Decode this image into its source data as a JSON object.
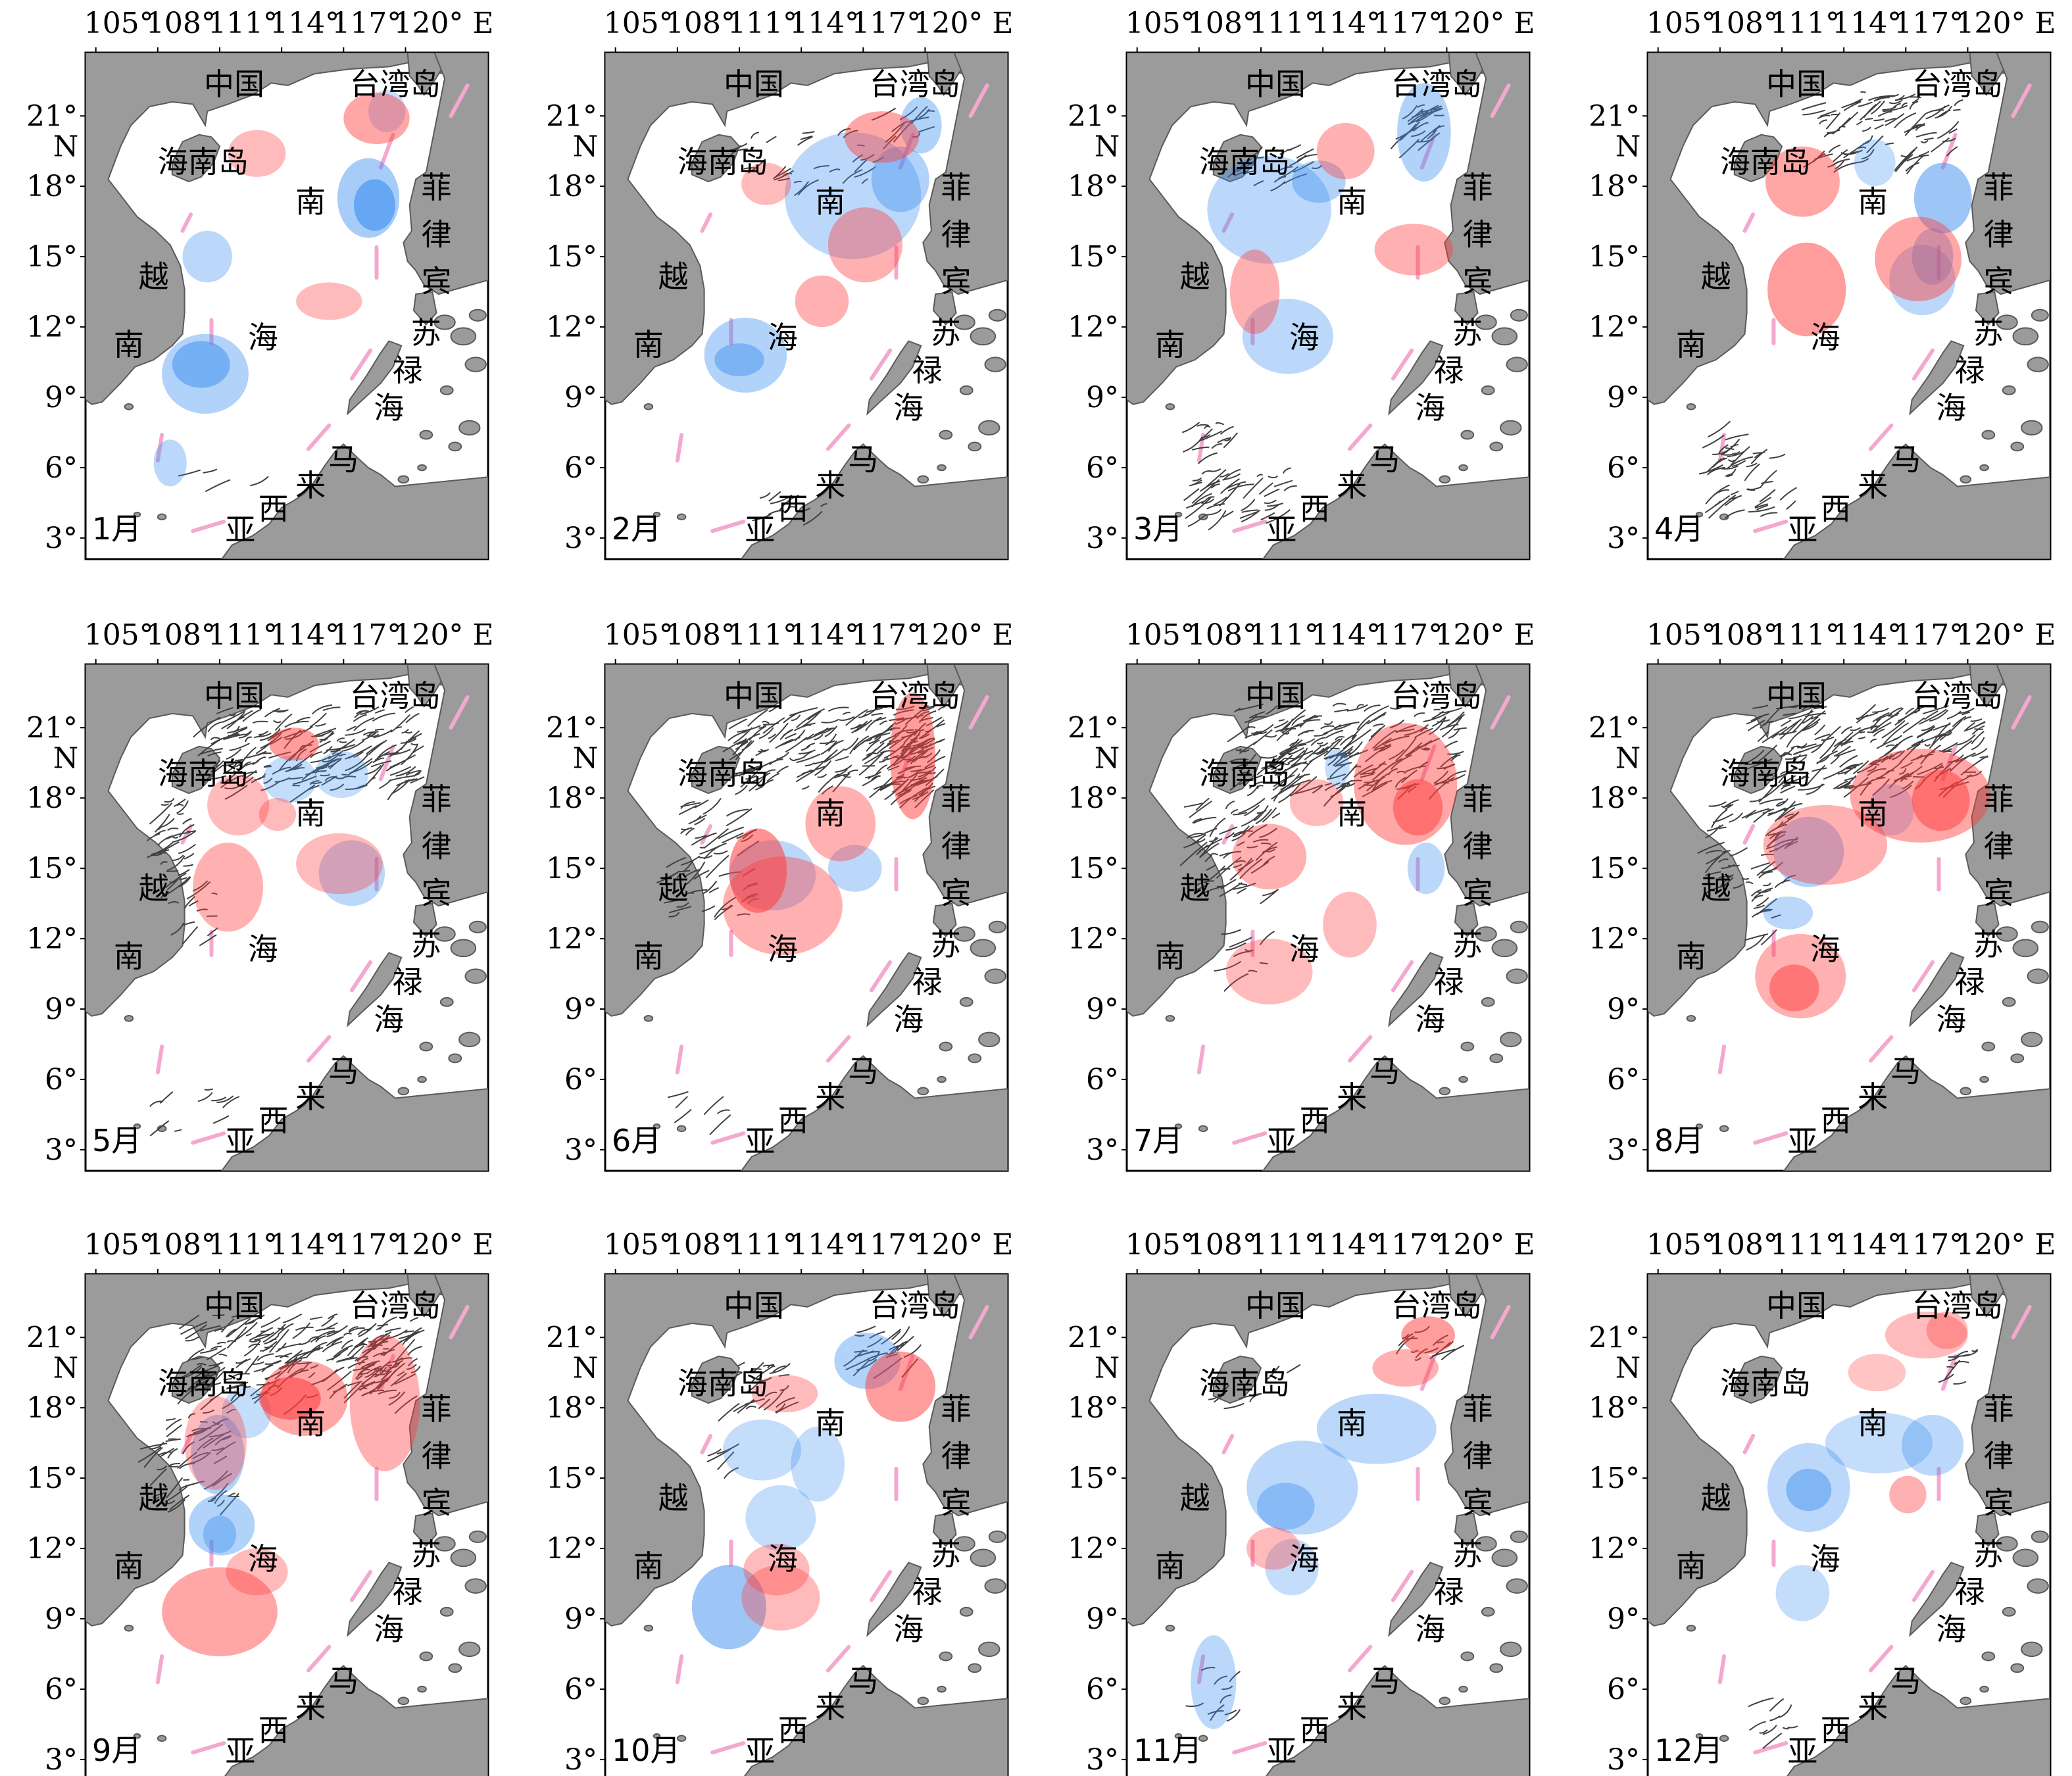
{
  "colors": {
    "warm_eddy": "#ff3b3b",
    "cold_eddy": "#3b8ef0",
    "land": "#9b9b9b",
    "nine_dash_line": "#f4a8d0",
    "tracks": "#404040"
  },
  "axes": {
    "x_ticks": [
      "105°",
      "108°",
      "111°",
      "114°",
      "117°",
      "120° E"
    ],
    "y_ticks": [
      "21°",
      "18°",
      "15°",
      "12°",
      "9°",
      "6°",
      "3°"
    ],
    "y_unit": "N"
  },
  "place_names": {
    "china": "中国",
    "taiwan": "台湾岛",
    "hainan": "海南岛",
    "philippines": [
      "菲",
      "律",
      "宾"
    ],
    "vietnam": [
      "越",
      "南"
    ],
    "south_china_sea": [
      "南",
      "海"
    ],
    "sulu_sea": [
      "苏",
      "禄",
      "海"
    ],
    "malaysia": [
      "马",
      "来",
      "西",
      "亚"
    ]
  },
  "panels": [
    {
      "month": "1月",
      "warm": [
        {
          "lon": 112.8,
          "lat": 19.4,
          "rx": 1.4,
          "ry": 1.0,
          "a": 0.35
        },
        {
          "lon": 118.6,
          "lat": 20.9,
          "rx": 1.6,
          "ry": 1.1,
          "a": 0.45
        },
        {
          "lon": 116.3,
          "lat": 13.1,
          "rx": 1.6,
          "ry": 0.8,
          "a": 0.35
        }
      ],
      "cold": [
        {
          "lon": 119.1,
          "lat": 21.2,
          "rx": 0.9,
          "ry": 0.9,
          "a": 0.3
        },
        {
          "lon": 118.2,
          "lat": 17.5,
          "rx": 1.5,
          "ry": 1.7,
          "a": 0.45
        },
        {
          "lon": 118.5,
          "lat": 17.2,
          "rx": 1.0,
          "ry": 1.1,
          "a": 0.6
        },
        {
          "lon": 110.4,
          "lat": 15.0,
          "rx": 1.2,
          "ry": 1.1,
          "a": 0.35
        },
        {
          "lon": 110.3,
          "lat": 10.0,
          "rx": 2.1,
          "ry": 1.7,
          "a": 0.4
        },
        {
          "lon": 110.1,
          "lat": 10.4,
          "rx": 1.4,
          "ry": 1.0,
          "a": 0.5
        },
        {
          "lon": 108.6,
          "lat": 6.2,
          "rx": 0.8,
          "ry": 1.0,
          "a": 0.35
        }
      ],
      "tracks": 0
    },
    {
      "month": "2月",
      "warm": [
        {
          "lon": 117.9,
          "lat": 20.1,
          "rx": 1.8,
          "ry": 1.1,
          "a": 0.45
        },
        {
          "lon": 112.3,
          "lat": 18.1,
          "rx": 1.2,
          "ry": 0.9,
          "a": 0.35
        },
        {
          "lon": 117.1,
          "lat": 15.5,
          "rx": 1.8,
          "ry": 1.6,
          "a": 0.4
        },
        {
          "lon": 115.0,
          "lat": 13.1,
          "rx": 1.3,
          "ry": 1.1,
          "a": 0.4
        }
      ],
      "cold": [
        {
          "lon": 116.5,
          "lat": 17.6,
          "rx": 3.3,
          "ry": 2.7,
          "a": 0.35
        },
        {
          "lon": 118.8,
          "lat": 18.3,
          "rx": 1.4,
          "ry": 1.4,
          "a": 0.4
        },
        {
          "lon": 119.8,
          "lat": 20.6,
          "rx": 1.0,
          "ry": 1.2,
          "a": 0.4
        },
        {
          "lon": 111.3,
          "lat": 10.8,
          "rx": 2.0,
          "ry": 1.6,
          "a": 0.4
        },
        {
          "lon": 111.0,
          "lat": 10.6,
          "rx": 1.2,
          "ry": 0.7,
          "a": 0.45
        }
      ],
      "tracks": 1
    },
    {
      "month": "3月",
      "warm": [
        {
          "lon": 115.1,
          "lat": 19.5,
          "rx": 1.4,
          "ry": 1.2,
          "a": 0.4
        },
        {
          "lon": 118.4,
          "lat": 15.3,
          "rx": 1.9,
          "ry": 1.1,
          "a": 0.4
        },
        {
          "lon": 110.7,
          "lat": 13.5,
          "rx": 1.2,
          "ry": 1.8,
          "a": 0.4
        }
      ],
      "cold": [
        {
          "lon": 111.4,
          "lat": 17.0,
          "rx": 3.0,
          "ry": 2.3,
          "a": 0.35
        },
        {
          "lon": 113.8,
          "lat": 18.2,
          "rx": 1.3,
          "ry": 0.9,
          "a": 0.4
        },
        {
          "lon": 118.9,
          "lat": 20.3,
          "rx": 1.3,
          "ry": 2.1,
          "a": 0.4
        },
        {
          "lon": 112.3,
          "lat": 11.6,
          "rx": 2.2,
          "ry": 1.6,
          "a": 0.35
        }
      ],
      "tracks": 2
    },
    {
      "month": "4月",
      "warm": [
        {
          "lon": 112.0,
          "lat": 18.2,
          "rx": 1.8,
          "ry": 1.5,
          "a": 0.45
        },
        {
          "lon": 112.2,
          "lat": 13.6,
          "rx": 1.9,
          "ry": 2.0,
          "a": 0.5
        },
        {
          "lon": 117.6,
          "lat": 14.9,
          "rx": 2.1,
          "ry": 1.8,
          "a": 0.45
        }
      ],
      "cold": [
        {
          "lon": 115.5,
          "lat": 19.0,
          "rx": 1.0,
          "ry": 1.0,
          "a": 0.3
        },
        {
          "lon": 118.8,
          "lat": 17.5,
          "rx": 1.4,
          "ry": 1.5,
          "a": 0.5
        },
        {
          "lon": 117.8,
          "lat": 14.0,
          "rx": 1.6,
          "ry": 1.5,
          "a": 0.35
        },
        {
          "lon": 118.3,
          "lat": 15.0,
          "rx": 1.0,
          "ry": 1.2,
          "a": 0.4
        }
      ],
      "tracks": 3
    },
    {
      "month": "5月",
      "warm": [
        {
          "lon": 114.6,
          "lat": 20.3,
          "rx": 1.2,
          "ry": 0.7,
          "a": 0.5
        },
        {
          "lon": 111.9,
          "lat": 17.7,
          "rx": 1.5,
          "ry": 1.3,
          "a": 0.35
        },
        {
          "lon": 113.8,
          "lat": 17.3,
          "rx": 0.9,
          "ry": 0.7,
          "a": 0.35
        },
        {
          "lon": 111.4,
          "lat": 14.2,
          "rx": 1.7,
          "ry": 1.9,
          "a": 0.4
        },
        {
          "lon": 116.8,
          "lat": 15.2,
          "rx": 2.1,
          "ry": 1.3,
          "a": 0.35
        }
      ],
      "cold": [
        {
          "lon": 114.4,
          "lat": 18.8,
          "rx": 1.3,
          "ry": 1.0,
          "a": 0.3
        },
        {
          "lon": 116.9,
          "lat": 19.0,
          "rx": 1.3,
          "ry": 1.0,
          "a": 0.3
        },
        {
          "lon": 117.4,
          "lat": 14.8,
          "rx": 1.6,
          "ry": 1.4,
          "a": 0.35
        }
      ],
      "tracks": 4
    },
    {
      "month": "6月",
      "warm": [
        {
          "lon": 119.4,
          "lat": 19.8,
          "rx": 1.1,
          "ry": 2.7,
          "a": 0.5
        },
        {
          "lon": 111.9,
          "lat": 14.9,
          "rx": 1.4,
          "ry": 1.8,
          "a": 0.55
        },
        {
          "lon": 113.1,
          "lat": 13.4,
          "rx": 2.9,
          "ry": 2.1,
          "a": 0.4
        },
        {
          "lon": 115.9,
          "lat": 16.9,
          "rx": 1.7,
          "ry": 1.6,
          "a": 0.4
        }
      ],
      "cold": [
        {
          "lon": 116.6,
          "lat": 15.0,
          "rx": 1.3,
          "ry": 1.0,
          "a": 0.35
        },
        {
          "lon": 112.6,
          "lat": 14.7,
          "rx": 2.1,
          "ry": 1.5,
          "a": 0.35
        }
      ],
      "tracks": 5
    },
    {
      "month": "7月",
      "warm": [
        {
          "lon": 118.0,
          "lat": 18.6,
          "rx": 2.5,
          "ry": 2.6,
          "a": 0.45
        },
        {
          "lon": 118.6,
          "lat": 17.6,
          "rx": 1.2,
          "ry": 1.2,
          "a": 0.5
        },
        {
          "lon": 111.4,
          "lat": 15.5,
          "rx": 1.8,
          "ry": 1.4,
          "a": 0.4
        },
        {
          "lon": 113.7,
          "lat": 17.8,
          "rx": 1.3,
          "ry": 1.0,
          "a": 0.35
        },
        {
          "lon": 115.3,
          "lat": 12.6,
          "rx": 1.3,
          "ry": 1.4,
          "a": 0.35
        },
        {
          "lon": 111.4,
          "lat": 10.6,
          "rx": 2.1,
          "ry": 1.4,
          "a": 0.35
        }
      ],
      "cold": [
        {
          "lon": 114.7,
          "lat": 19.3,
          "rx": 0.6,
          "ry": 0.8,
          "a": 0.3
        },
        {
          "lon": 119.0,
          "lat": 15.0,
          "rx": 0.9,
          "ry": 1.1,
          "a": 0.35
        }
      ],
      "tracks": 6
    },
    {
      "month": "8月",
      "warm": [
        {
          "lon": 117.7,
          "lat": 18.1,
          "rx": 3.4,
          "ry": 2.0,
          "a": 0.45
        },
        {
          "lon": 118.7,
          "lat": 17.9,
          "rx": 1.4,
          "ry": 1.3,
          "a": 0.5
        },
        {
          "lon": 113.1,
          "lat": 16.0,
          "rx": 3.0,
          "ry": 1.7,
          "a": 0.4
        },
        {
          "lon": 111.9,
          "lat": 10.4,
          "rx": 2.2,
          "ry": 1.8,
          "a": 0.4
        },
        {
          "lon": 111.6,
          "lat": 9.9,
          "rx": 1.2,
          "ry": 1.0,
          "a": 0.5
        }
      ],
      "cold": [
        {
          "lon": 112.3,
          "lat": 15.7,
          "rx": 1.7,
          "ry": 1.5,
          "a": 0.4
        },
        {
          "lon": 116.3,
          "lat": 17.5,
          "rx": 1.1,
          "ry": 1.1,
          "a": 0.3
        },
        {
          "lon": 111.3,
          "lat": 13.1,
          "rx": 1.2,
          "ry": 0.7,
          "a": 0.35
        }
      ],
      "tracks": 7
    },
    {
      "month": "9月",
      "warm": [
        {
          "lon": 115.1,
          "lat": 18.4,
          "rx": 2.1,
          "ry": 1.6,
          "a": 0.45
        },
        {
          "lon": 114.4,
          "lat": 18.4,
          "rx": 1.5,
          "ry": 0.9,
          "a": 0.55
        },
        {
          "lon": 119.0,
          "lat": 18.2,
          "rx": 1.7,
          "ry": 2.9,
          "a": 0.4
        },
        {
          "lon": 110.8,
          "lat": 16.5,
          "rx": 1.5,
          "ry": 2.0,
          "a": 0.35
        },
        {
          "lon": 112.8,
          "lat": 11.0,
          "rx": 1.5,
          "ry": 1.0,
          "a": 0.35
        },
        {
          "lon": 111.0,
          "lat": 9.3,
          "rx": 2.8,
          "ry": 1.9,
          "a": 0.45
        }
      ],
      "cold": [
        {
          "lon": 112.3,
          "lat": 17.8,
          "rx": 1.2,
          "ry": 1.1,
          "a": 0.3
        },
        {
          "lon": 110.9,
          "lat": 16.0,
          "rx": 1.3,
          "ry": 1.7,
          "a": 0.4
        },
        {
          "lon": 111.1,
          "lat": 13.0,
          "rx": 1.6,
          "ry": 1.3,
          "a": 0.4
        },
        {
          "lon": 111.0,
          "lat": 12.6,
          "rx": 0.8,
          "ry": 0.8,
          "a": 0.4
        }
      ],
      "tracks": 8
    },
    {
      "month": "10月",
      "warm": [
        {
          "lon": 118.8,
          "lat": 18.9,
          "rx": 1.7,
          "ry": 1.5,
          "a": 0.5
        },
        {
          "lon": 113.2,
          "lat": 18.6,
          "rx": 1.6,
          "ry": 0.8,
          "a": 0.35
        },
        {
          "lon": 112.8,
          "lat": 11.1,
          "rx": 1.6,
          "ry": 1.1,
          "a": 0.35
        },
        {
          "lon": 113.0,
          "lat": 9.9,
          "rx": 1.9,
          "ry": 1.4,
          "a": 0.35
        }
      ],
      "cold": [
        {
          "lon": 117.2,
          "lat": 20.0,
          "rx": 1.6,
          "ry": 1.2,
          "a": 0.4
        },
        {
          "lon": 112.1,
          "lat": 16.2,
          "rx": 1.9,
          "ry": 1.3,
          "a": 0.3
        },
        {
          "lon": 114.8,
          "lat": 15.6,
          "rx": 1.3,
          "ry": 1.6,
          "a": 0.3
        },
        {
          "lon": 113.0,
          "lat": 13.3,
          "rx": 1.7,
          "ry": 1.4,
          "a": 0.3
        },
        {
          "lon": 110.5,
          "lat": 9.5,
          "rx": 1.8,
          "ry": 1.8,
          "a": 0.5
        }
      ],
      "tracks": 9
    },
    {
      "month": "11月",
      "warm": [
        {
          "lon": 119.1,
          "lat": 21.1,
          "rx": 1.3,
          "ry": 0.8,
          "a": 0.5
        },
        {
          "lon": 118.0,
          "lat": 19.7,
          "rx": 1.6,
          "ry": 0.8,
          "a": 0.4
        },
        {
          "lon": 111.6,
          "lat": 12.0,
          "rx": 1.3,
          "ry": 0.9,
          "a": 0.35
        }
      ],
      "cold": [
        {
          "lon": 116.6,
          "lat": 17.1,
          "rx": 2.9,
          "ry": 1.5,
          "a": 0.35
        },
        {
          "lon": 113.0,
          "lat": 14.6,
          "rx": 2.7,
          "ry": 2.0,
          "a": 0.35
        },
        {
          "lon": 112.2,
          "lat": 13.8,
          "rx": 1.4,
          "ry": 1.0,
          "a": 0.4
        },
        {
          "lon": 112.5,
          "lat": 11.2,
          "rx": 1.3,
          "ry": 1.2,
          "a": 0.3
        },
        {
          "lon": 108.7,
          "lat": 6.3,
          "rx": 1.1,
          "ry": 2.0,
          "a": 0.35
        }
      ],
      "tracks": 10
    },
    {
      "month": "12月",
      "warm": [
        {
          "lon": 118.0,
          "lat": 21.1,
          "rx": 2.0,
          "ry": 1.0,
          "a": 0.35
        },
        {
          "lon": 119.0,
          "lat": 21.3,
          "rx": 1.0,
          "ry": 0.8,
          "a": 0.35
        },
        {
          "lon": 115.6,
          "lat": 19.5,
          "rx": 1.4,
          "ry": 0.8,
          "a": 0.3
        },
        {
          "lon": 117.1,
          "lat": 14.3,
          "rx": 0.9,
          "ry": 0.8,
          "a": 0.4
        }
      ],
      "cold": [
        {
          "lon": 115.7,
          "lat": 16.5,
          "rx": 2.6,
          "ry": 1.3,
          "a": 0.3
        },
        {
          "lon": 118.3,
          "lat": 16.4,
          "rx": 1.5,
          "ry": 1.3,
          "a": 0.35
        },
        {
          "lon": 112.3,
          "lat": 14.6,
          "rx": 2.0,
          "ry": 1.9,
          "a": 0.35
        },
        {
          "lon": 112.3,
          "lat": 14.5,
          "rx": 1.1,
          "ry": 0.9,
          "a": 0.45
        },
        {
          "lon": 112.0,
          "lat": 10.1,
          "rx": 1.3,
          "ry": 1.2,
          "a": 0.3
        }
      ],
      "tracks": 11
    }
  ]
}
